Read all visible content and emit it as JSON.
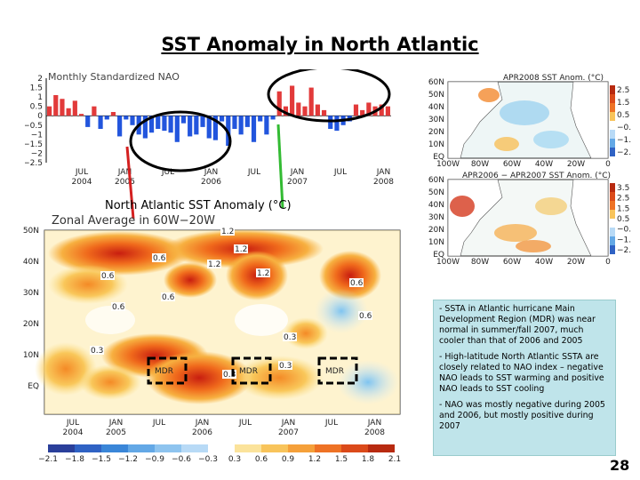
{
  "slide": {
    "title": "SST Anomaly in North Atlantic",
    "page_number": "28"
  },
  "nao_chart": {
    "title": "Monthly Standardized NAO",
    "y_ticks": [
      "2",
      "1.5",
      "1",
      "0.5",
      "0",
      "−0.5",
      "−1",
      "−1.5",
      "−2",
      "−2.5"
    ],
    "x_ticks": [
      {
        "top": "JUL",
        "bottom": "2004"
      },
      {
        "top": "JAN",
        "bottom": "2005"
      },
      {
        "top": "JUL",
        "bottom": ""
      },
      {
        "top": "JAN",
        "bottom": "2006"
      },
      {
        "top": "JUL",
        "bottom": ""
      },
      {
        "top": "JAN",
        "bottom": "2007"
      },
      {
        "top": "JUL",
        "bottom": ""
      },
      {
        "top": "JAN",
        "bottom": "2008"
      }
    ]
  },
  "chart_data": {
    "type": "bar",
    "title": "Monthly Standardized NAO",
    "ylim": [
      -2.5,
      2
    ],
    "values": [
      0.5,
      1.1,
      0.9,
      0.4,
      0.8,
      0.1,
      -0.6,
      0.5,
      -0.7,
      -0.2,
      0.2,
      -1.1,
      -0.2,
      -0.5,
      -1.0,
      -1.2,
      -0.9,
      -0.7,
      -0.8,
      -0.9,
      -1.4,
      -0.4,
      -1.1,
      -1.0,
      -0.6,
      -1.2,
      -1.3,
      -0.3,
      -1.6,
      -0.7,
      -1.0,
      -0.6,
      -1.4,
      -0.3,
      -1.0,
      -0.2,
      1.3,
      0.5,
      1.6,
      0.7,
      0.5,
      1.5,
      0.6,
      0.3,
      -0.7,
      -0.8,
      -0.5,
      -0.3,
      0.6,
      0.3,
      0.7,
      0.5,
      0.6,
      0.5
    ]
  },
  "zonal_chart": {
    "title": "North Atlantic SST Anomaly (°C)",
    "subtitle": "Zonal Average in 60W−20W",
    "y_ticks": [
      "50N",
      "40N",
      "30N",
      "20N",
      "10N",
      "EQ"
    ],
    "x_ticks": [
      {
        "top": "JUL",
        "bottom": "2004"
      },
      {
        "top": "JAN",
        "bottom": "2005"
      },
      {
        "top": "JUL",
        "bottom": ""
      },
      {
        "top": "JAN",
        "bottom": "2006"
      },
      {
        "top": "JUL",
        "bottom": ""
      },
      {
        "top": "JAN",
        "bottom": "2007"
      },
      {
        "top": "JUL",
        "bottom": ""
      },
      {
        "top": "JAN",
        "bottom": "2008"
      }
    ],
    "mdr_label": "MDR",
    "contour_labels": [
      "1.2",
      "1.2",
      "0.6",
      "1.2",
      "1.2",
      "0.6",
      "0.6",
      "0.6",
      "0.6",
      "0.6",
      "0.3",
      "0.3",
      "0.3",
      "0.3"
    ],
    "colorbar_ticks": [
      "−2.1",
      "−1.8",
      "−1.5",
      "−1.2",
      "−0.9",
      "−0.6",
      "−0.3",
      "0.3",
      "0.6",
      "0.9",
      "1.2",
      "1.5",
      "1.8",
      "2.1"
    ]
  },
  "maps": {
    "map1_title": "APR2008 SST Anom. (°C)",
    "map2_title": "APR2006 − APR2007 SST Anom. (°C)",
    "lat_ticks": [
      "60N",
      "50N",
      "40N",
      "30N",
      "20N",
      "10N",
      "EQ"
    ],
    "lon_ticks": [
      "100W",
      "80W",
      "60W",
      "40W",
      "20W",
      "0"
    ],
    "cb1_ticks": [
      "2.5",
      "1.5",
      "0.5",
      "−0.5",
      "−1.5",
      "−2.5"
    ],
    "cb2_ticks": [
      "3.5",
      "2.5",
      "1.5",
      "0.5",
      "−0.5",
      "−1.5",
      "−2.5"
    ]
  },
  "notes": {
    "p1": "- SSTA in Atlantic hurricane Main Development Region (MDR) was near normal in summer/fall 2007, much cooler than that of 2006 and 2005",
    "p2": "-  High-latitude North Atlantic SSTA are closely related to NAO index – negative NAO leads to SST warming and positive NAO leads to SST cooling",
    "p3": "- NAO was mostly negative during 2005 and 2006, but mostly positive during 2007"
  },
  "colors": {
    "positive_bar": "#e23a3a",
    "negative_bar": "#2255dd",
    "notes_bg": "#bfe4ea",
    "arrow_red": "#d42020",
    "arrow_green": "#33bb33"
  }
}
